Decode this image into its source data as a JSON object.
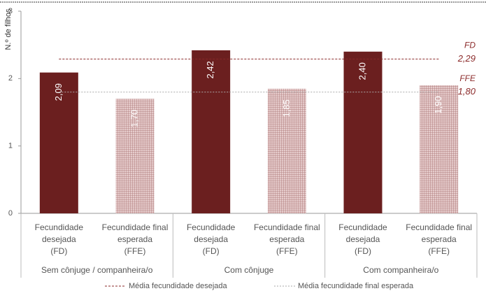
{
  "chart_data": {
    "type": "bar",
    "y_label": "N.º de filhos",
    "groups": [
      "Sem cônjuge / companheira/o",
      "Com cônjuge",
      "Com companheira/o"
    ],
    "categories": [
      [
        "Fecundidade",
        "desejada",
        "(FD)"
      ],
      [
        "Fecundidade final",
        "esperada",
        "(FFE)"
      ],
      [
        "Fecundidade",
        "desejada",
        "(FD)"
      ],
      [
        "Fecundidade final",
        "esperada",
        "(FFE)"
      ],
      [
        "Fecundidade",
        "desejada",
        "(FD)"
      ],
      [
        "Fecundidade final",
        "esperada",
        "(FFE)"
      ]
    ],
    "values": [
      2.09,
      1.7,
      2.42,
      1.85,
      2.4,
      1.9
    ],
    "value_labels": [
      "2,09",
      "1,70",
      "2,42",
      "1,85",
      "2,40",
      "1,90"
    ],
    "colors": [
      "#6b1f1f",
      "#d6b4b4",
      "#6b1f1f",
      "#d6b4b4",
      "#6b1f1f",
      "#d6b4b4"
    ],
    "hatched": [
      false,
      true,
      false,
      true,
      false,
      true
    ],
    "reference_lines": [
      {
        "name": "Média fecundidade desejada",
        "tag": "FD",
        "value": 2.29,
        "label": "2,29",
        "color": "#8b2a2a",
        "dash": "3,2"
      },
      {
        "name": "Média fecundidade final esperada",
        "tag": "FFE",
        "value": 1.8,
        "label": "1,80",
        "color": "#aaaaaa",
        "dash": "2,2"
      }
    ],
    "ylim": [
      0,
      3
    ],
    "yticks": [
      0,
      1,
      2,
      3
    ]
  }
}
